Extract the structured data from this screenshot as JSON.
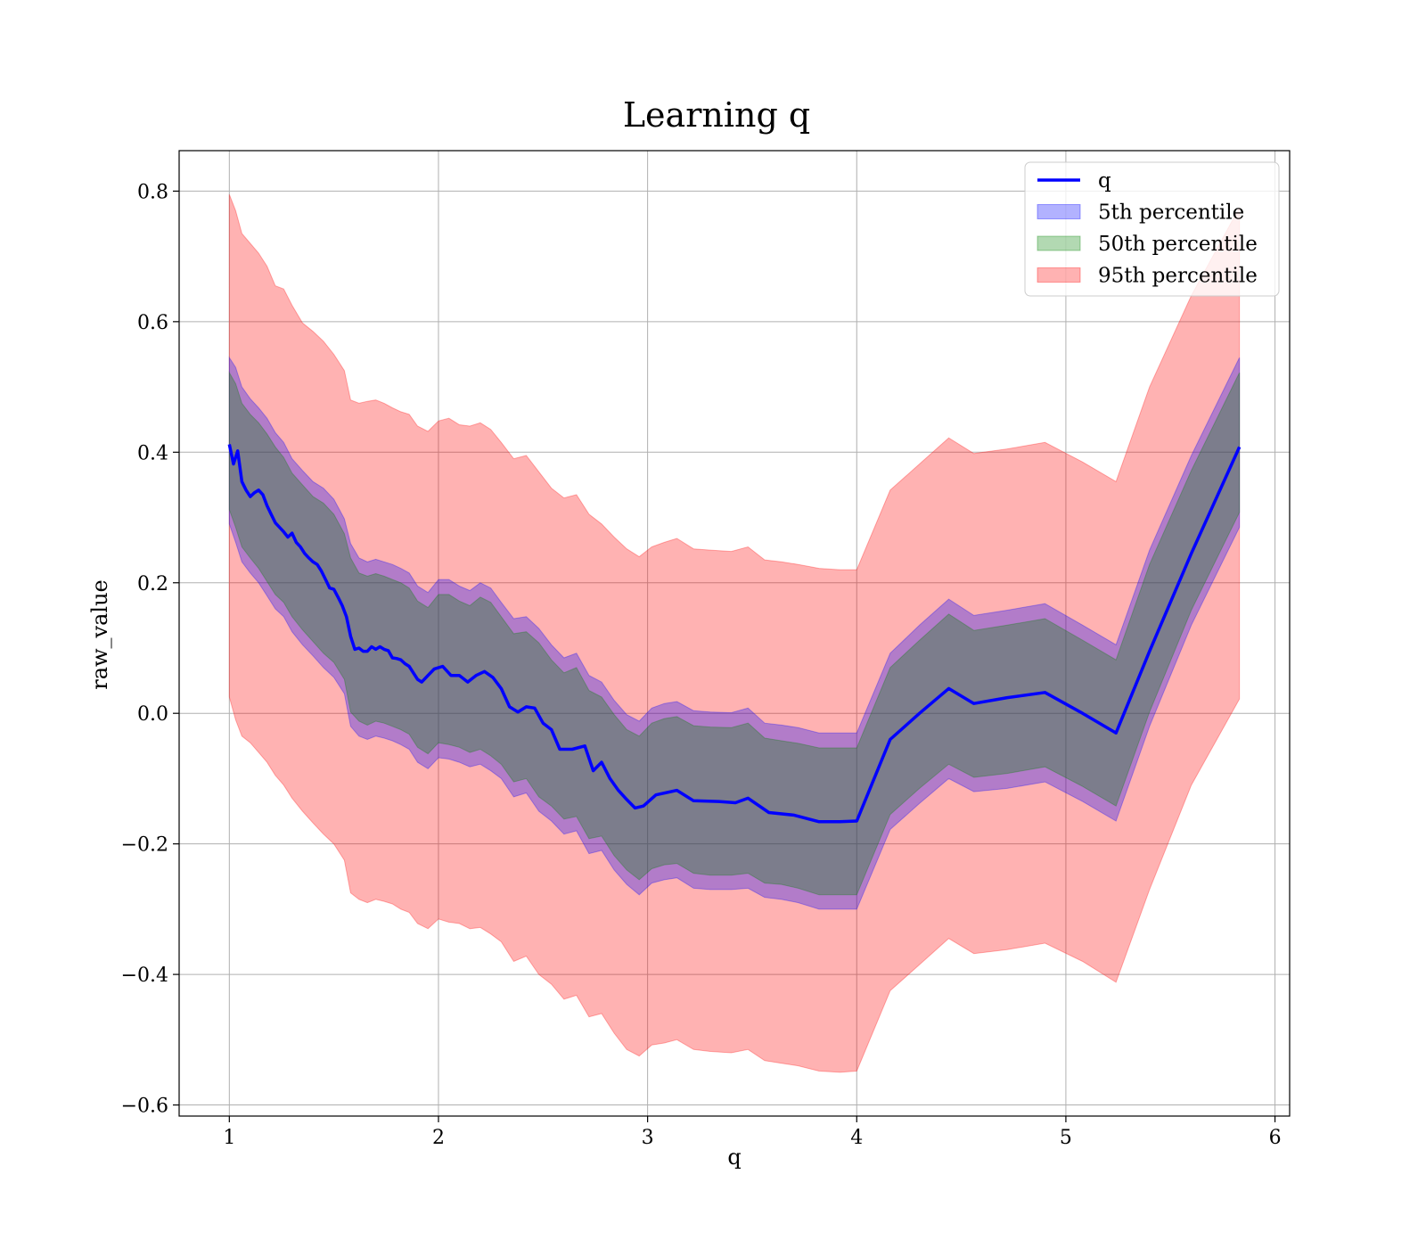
{
  "chart_data": {
    "type": "line",
    "title": "Learning q",
    "xlabel": "q",
    "ylabel": "raw_value",
    "xlim": [
      0.76,
      6.07
    ],
    "ylim": [
      -0.617,
      0.862
    ],
    "x_ticks": [
      1,
      2,
      3,
      4,
      5,
      6
    ],
    "x_tick_labels": [
      "1",
      "2",
      "3",
      "4",
      "5",
      "6"
    ],
    "y_ticks": [
      -0.6,
      -0.4,
      -0.2,
      0.0,
      0.2,
      0.4,
      0.6,
      0.8
    ],
    "y_tick_labels": [
      "−0.6",
      "−0.4",
      "−0.2",
      "0.0",
      "0.2",
      "0.4",
      "0.6",
      "0.8"
    ],
    "grid": true,
    "legend_position": "top-right",
    "legend": [
      {
        "label": "q",
        "kind": "line",
        "color": "#0000ff"
      },
      {
        "label": "5th percentile",
        "kind": "patch",
        "color": "#0000ff"
      },
      {
        "label": "50th percentile",
        "kind": "patch",
        "color": "#008000"
      },
      {
        "label": "95th percentile",
        "kind": "patch",
        "color": "#ff0000"
      }
    ],
    "series": [
      {
        "name": "q",
        "color": "#0000ff",
        "x": [
          1.0,
          1.02,
          1.04,
          1.06,
          1.08,
          1.1,
          1.12,
          1.14,
          1.16,
          1.18,
          1.2,
          1.22,
          1.24,
          1.26,
          1.28,
          1.3,
          1.32,
          1.34,
          1.36,
          1.38,
          1.4,
          1.42,
          1.44,
          1.46,
          1.48,
          1.5,
          1.52,
          1.54,
          1.56,
          1.58,
          1.6,
          1.62,
          1.64,
          1.66,
          1.68,
          1.7,
          1.72,
          1.74,
          1.76,
          1.78,
          1.8,
          1.82,
          1.84,
          1.86,
          1.88,
          1.9,
          1.92,
          1.95,
          1.98,
          2.02,
          2.06,
          2.1,
          2.14,
          2.18,
          2.22,
          2.26,
          2.3,
          2.34,
          2.38,
          2.42,
          2.46,
          2.5,
          2.54,
          2.58,
          2.64,
          2.7,
          2.74,
          2.78,
          2.82,
          2.86,
          2.9,
          2.94,
          2.98,
          3.04,
          3.14,
          3.22,
          3.34,
          3.42,
          3.48,
          3.58,
          3.7,
          3.82,
          3.92,
          4.0,
          4.16,
          4.3,
          4.44,
          4.56,
          4.72,
          4.9,
          5.08,
          5.24,
          5.4,
          5.6,
          5.83
        ],
        "values": [
          0.412,
          0.382,
          0.402,
          0.355,
          0.342,
          0.332,
          0.338,
          0.342,
          0.335,
          0.318,
          0.305,
          0.292,
          0.285,
          0.278,
          0.27,
          0.276,
          0.262,
          0.255,
          0.245,
          0.238,
          0.232,
          0.228,
          0.218,
          0.205,
          0.192,
          0.19,
          0.178,
          0.165,
          0.148,
          0.118,
          0.098,
          0.1,
          0.095,
          0.095,
          0.102,
          0.098,
          0.102,
          0.098,
          0.096,
          0.085,
          0.084,
          0.082,
          0.076,
          0.072,
          0.062,
          0.052,
          0.048,
          0.058,
          0.068,
          0.072,
          0.058,
          0.058,
          0.048,
          0.058,
          0.064,
          0.055,
          0.038,
          0.01,
          0.002,
          0.01,
          0.008,
          -0.015,
          -0.025,
          -0.055,
          -0.055,
          -0.05,
          -0.088,
          -0.075,
          -0.1,
          -0.118,
          -0.132,
          -0.145,
          -0.142,
          -0.125,
          -0.118,
          -0.134,
          -0.135,
          -0.137,
          -0.13,
          -0.152,
          -0.156,
          -0.166,
          -0.166,
          -0.165,
          -0.04,
          0.0,
          0.038,
          0.015,
          0.024,
          0.032,
          0.0,
          -0.03,
          0.095,
          0.245,
          0.408
        ]
      }
    ],
    "bands": [
      {
        "name": "95th percentile",
        "color": "#ff0000",
        "x": [
          1.0,
          1.03,
          1.06,
          1.1,
          1.14,
          1.18,
          1.22,
          1.26,
          1.3,
          1.35,
          1.4,
          1.45,
          1.5,
          1.55,
          1.58,
          1.62,
          1.66,
          1.7,
          1.74,
          1.78,
          1.82,
          1.86,
          1.9,
          1.95,
          2.0,
          2.05,
          2.1,
          2.15,
          2.2,
          2.25,
          2.3,
          2.36,
          2.42,
          2.48,
          2.54,
          2.6,
          2.66,
          2.72,
          2.78,
          2.84,
          2.9,
          2.96,
          3.02,
          3.08,
          3.14,
          3.22,
          3.3,
          3.4,
          3.48,
          3.56,
          3.64,
          3.72,
          3.82,
          3.92,
          4.0,
          4.16,
          4.3,
          4.44,
          4.56,
          4.72,
          4.9,
          5.08,
          5.24,
          5.4,
          5.6,
          5.83
        ],
        "upper": [
          0.795,
          0.77,
          0.735,
          0.72,
          0.705,
          0.685,
          0.655,
          0.65,
          0.625,
          0.598,
          0.585,
          0.57,
          0.55,
          0.525,
          0.48,
          0.475,
          0.478,
          0.48,
          0.475,
          0.468,
          0.462,
          0.458,
          0.44,
          0.432,
          0.448,
          0.452,
          0.442,
          0.44,
          0.445,
          0.435,
          0.415,
          0.39,
          0.395,
          0.37,
          0.345,
          0.33,
          0.335,
          0.305,
          0.29,
          0.27,
          0.252,
          0.24,
          0.255,
          0.262,
          0.268,
          0.252,
          0.25,
          0.248,
          0.255,
          0.235,
          0.232,
          0.228,
          0.222,
          0.22,
          0.22,
          0.342,
          0.382,
          0.422,
          0.398,
          0.405,
          0.415,
          0.385,
          0.355,
          0.5,
          0.64,
          0.775
        ],
        "lower": [
          0.025,
          -0.01,
          -0.035,
          -0.045,
          -0.06,
          -0.075,
          -0.095,
          -0.11,
          -0.13,
          -0.15,
          -0.168,
          -0.185,
          -0.2,
          -0.225,
          -0.275,
          -0.285,
          -0.29,
          -0.285,
          -0.288,
          -0.292,
          -0.3,
          -0.305,
          -0.322,
          -0.33,
          -0.315,
          -0.32,
          -0.322,
          -0.33,
          -0.328,
          -0.338,
          -0.35,
          -0.38,
          -0.372,
          -0.4,
          -0.415,
          -0.438,
          -0.432,
          -0.465,
          -0.46,
          -0.49,
          -0.515,
          -0.525,
          -0.508,
          -0.505,
          -0.5,
          -0.515,
          -0.518,
          -0.52,
          -0.515,
          -0.532,
          -0.536,
          -0.54,
          -0.548,
          -0.55,
          -0.548,
          -0.425,
          -0.385,
          -0.345,
          -0.368,
          -0.362,
          -0.352,
          -0.38,
          -0.412,
          -0.27,
          -0.11,
          0.022
        ]
      },
      {
        "name": "5th percentile",
        "color": "#0000ff",
        "x": [
          1.0,
          1.03,
          1.06,
          1.1,
          1.14,
          1.18,
          1.22,
          1.26,
          1.3,
          1.35,
          1.4,
          1.45,
          1.5,
          1.55,
          1.58,
          1.62,
          1.66,
          1.7,
          1.74,
          1.78,
          1.82,
          1.86,
          1.9,
          1.95,
          2.0,
          2.05,
          2.1,
          2.15,
          2.2,
          2.25,
          2.3,
          2.36,
          2.42,
          2.48,
          2.54,
          2.6,
          2.66,
          2.72,
          2.78,
          2.84,
          2.9,
          2.96,
          3.02,
          3.08,
          3.14,
          3.22,
          3.3,
          3.4,
          3.48,
          3.56,
          3.64,
          3.72,
          3.82,
          3.92,
          4.0,
          4.16,
          4.3,
          4.44,
          4.56,
          4.72,
          4.9,
          5.08,
          5.24,
          5.4,
          5.6,
          5.83
        ],
        "upper": [
          0.545,
          0.53,
          0.5,
          0.482,
          0.468,
          0.452,
          0.43,
          0.415,
          0.39,
          0.372,
          0.355,
          0.345,
          0.328,
          0.298,
          0.26,
          0.238,
          0.232,
          0.236,
          0.232,
          0.228,
          0.222,
          0.215,
          0.195,
          0.185,
          0.205,
          0.205,
          0.195,
          0.188,
          0.2,
          0.192,
          0.17,
          0.145,
          0.148,
          0.13,
          0.105,
          0.085,
          0.092,
          0.058,
          0.048,
          0.02,
          -0.002,
          -0.012,
          0.008,
          0.015,
          0.018,
          0.004,
          0.002,
          0.001,
          0.008,
          -0.015,
          -0.018,
          -0.022,
          -0.03,
          -0.03,
          -0.03,
          0.092,
          0.135,
          0.175,
          0.15,
          0.158,
          0.168,
          0.135,
          0.105,
          0.25,
          0.395,
          0.545
        ],
        "lower": [
          0.29,
          0.262,
          0.232,
          0.215,
          0.2,
          0.18,
          0.16,
          0.148,
          0.125,
          0.105,
          0.088,
          0.07,
          0.055,
          0.03,
          -0.02,
          -0.035,
          -0.04,
          -0.035,
          -0.038,
          -0.042,
          -0.048,
          -0.055,
          -0.075,
          -0.085,
          -0.068,
          -0.07,
          -0.075,
          -0.082,
          -0.078,
          -0.088,
          -0.1,
          -0.128,
          -0.122,
          -0.15,
          -0.165,
          -0.185,
          -0.18,
          -0.215,
          -0.21,
          -0.24,
          -0.262,
          -0.278,
          -0.26,
          -0.255,
          -0.252,
          -0.268,
          -0.27,
          -0.27,
          -0.268,
          -0.282,
          -0.285,
          -0.29,
          -0.3,
          -0.3,
          -0.3,
          -0.178,
          -0.138,
          -0.1,
          -0.12,
          -0.115,
          -0.105,
          -0.135,
          -0.165,
          -0.02,
          0.135,
          0.285
        ]
      },
      {
        "name": "50th percentile",
        "color": "#008000",
        "x": [
          1.0,
          1.03,
          1.06,
          1.1,
          1.14,
          1.18,
          1.22,
          1.26,
          1.3,
          1.35,
          1.4,
          1.45,
          1.5,
          1.55,
          1.58,
          1.62,
          1.66,
          1.7,
          1.74,
          1.78,
          1.82,
          1.86,
          1.9,
          1.95,
          2.0,
          2.05,
          2.1,
          2.15,
          2.2,
          2.25,
          2.3,
          2.36,
          2.42,
          2.48,
          2.54,
          2.6,
          2.66,
          2.72,
          2.78,
          2.84,
          2.9,
          2.96,
          3.02,
          3.08,
          3.14,
          3.22,
          3.3,
          3.4,
          3.48,
          3.56,
          3.64,
          3.72,
          3.82,
          3.92,
          4.0,
          4.16,
          4.3,
          4.44,
          4.56,
          4.72,
          4.9,
          5.08,
          5.24,
          5.4,
          5.6,
          5.83
        ],
        "upper": [
          0.522,
          0.505,
          0.475,
          0.458,
          0.445,
          0.428,
          0.408,
          0.392,
          0.368,
          0.35,
          0.332,
          0.322,
          0.305,
          0.275,
          0.238,
          0.215,
          0.21,
          0.214,
          0.21,
          0.205,
          0.2,
          0.192,
          0.172,
          0.162,
          0.182,
          0.182,
          0.172,
          0.165,
          0.178,
          0.17,
          0.148,
          0.122,
          0.125,
          0.108,
          0.082,
          0.062,
          0.07,
          0.035,
          0.025,
          -0.002,
          -0.025,
          -0.035,
          -0.015,
          -0.008,
          -0.005,
          -0.019,
          -0.021,
          -0.022,
          -0.015,
          -0.038,
          -0.042,
          -0.046,
          -0.053,
          -0.053,
          -0.053,
          0.07,
          0.112,
          0.152,
          0.127,
          0.135,
          0.145,
          0.112,
          0.082,
          0.228,
          0.372,
          0.522
        ],
        "lower": [
          0.312,
          0.285,
          0.255,
          0.238,
          0.222,
          0.202,
          0.182,
          0.17,
          0.148,
          0.128,
          0.11,
          0.092,
          0.078,
          0.052,
          0.002,
          -0.012,
          -0.018,
          -0.012,
          -0.015,
          -0.02,
          -0.025,
          -0.032,
          -0.052,
          -0.062,
          -0.045,
          -0.048,
          -0.052,
          -0.06,
          -0.055,
          -0.065,
          -0.078,
          -0.105,
          -0.1,
          -0.128,
          -0.142,
          -0.162,
          -0.158,
          -0.192,
          -0.188,
          -0.218,
          -0.24,
          -0.255,
          -0.238,
          -0.232,
          -0.23,
          -0.245,
          -0.248,
          -0.248,
          -0.245,
          -0.26,
          -0.262,
          -0.268,
          -0.278,
          -0.278,
          -0.278,
          -0.155,
          -0.115,
          -0.078,
          -0.098,
          -0.092,
          -0.082,
          -0.112,
          -0.142,
          0.002,
          0.158,
          0.308
        ]
      }
    ]
  }
}
